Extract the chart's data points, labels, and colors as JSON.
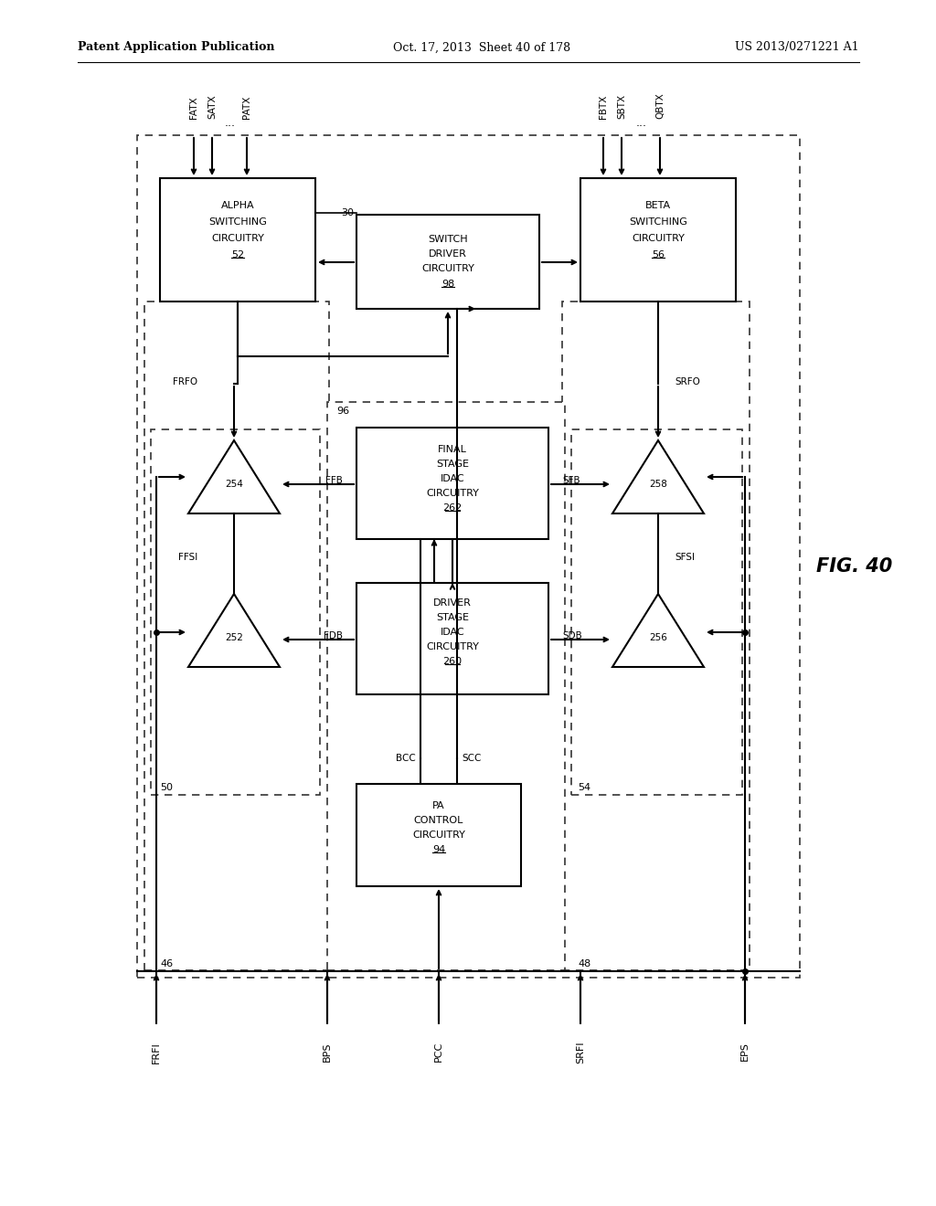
{
  "title_left": "Patent Application Publication",
  "title_center": "Oct. 17, 2013  Sheet 40 of 178",
  "title_right": "US 2013/0271221 A1",
  "fig_label": "FIG. 40",
  "background_color": "#ffffff"
}
